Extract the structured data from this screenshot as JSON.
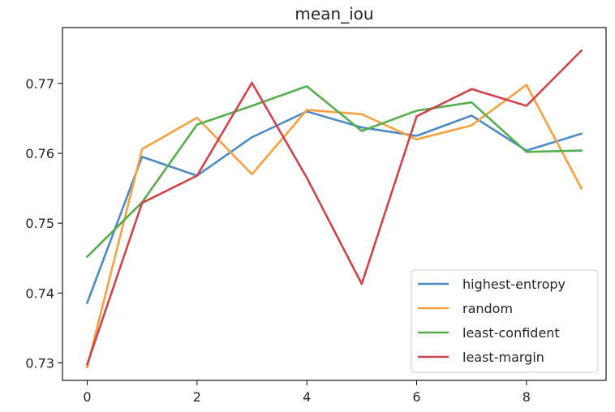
{
  "chart_data": {
    "type": "line",
    "title": "mean_iou",
    "xlabel": "",
    "ylabel": "",
    "x": [
      0,
      1,
      2,
      3,
      4,
      5,
      6,
      7,
      8,
      9
    ],
    "xlim": [
      -0.45,
      9.45
    ],
    "ylim": [
      0.7275,
      0.778
    ],
    "xticks": [
      0,
      2,
      4,
      6,
      8
    ],
    "yticks": [
      0.73,
      0.74,
      0.75,
      0.76,
      0.77
    ],
    "ytick_labels": [
      "0.73",
      "0.74",
      "0.75",
      "0.76",
      "0.77"
    ],
    "xtick_labels": [
      "0",
      "2",
      "4",
      "6",
      "8"
    ],
    "grid": false,
    "legend_position": "lower-right",
    "series": [
      {
        "name": "highest-entropy",
        "color": "#4c8ac6",
        "values": [
          0.7386,
          0.7595,
          0.7568,
          0.7623,
          0.766,
          0.7637,
          0.7625,
          0.7654,
          0.7604,
          0.7628
        ]
      },
      {
        "name": "random",
        "color": "#f89f3e",
        "values": [
          0.7294,
          0.7606,
          0.7651,
          0.757,
          0.7662,
          0.7656,
          0.762,
          0.764,
          0.7698,
          0.755
        ]
      },
      {
        "name": "least-confident",
        "color": "#56ad4d",
        "values": [
          0.7452,
          0.753,
          0.7641,
          0.7668,
          0.7696,
          0.7632,
          0.7661,
          0.7673,
          0.7602,
          0.7604
        ]
      },
      {
        "name": "least-margin",
        "color": "#d0434a",
        "values": [
          0.7298,
          0.7529,
          0.7568,
          0.7701,
          0.7565,
          0.7413,
          0.7653,
          0.7692,
          0.7668,
          0.7747
        ]
      }
    ]
  }
}
